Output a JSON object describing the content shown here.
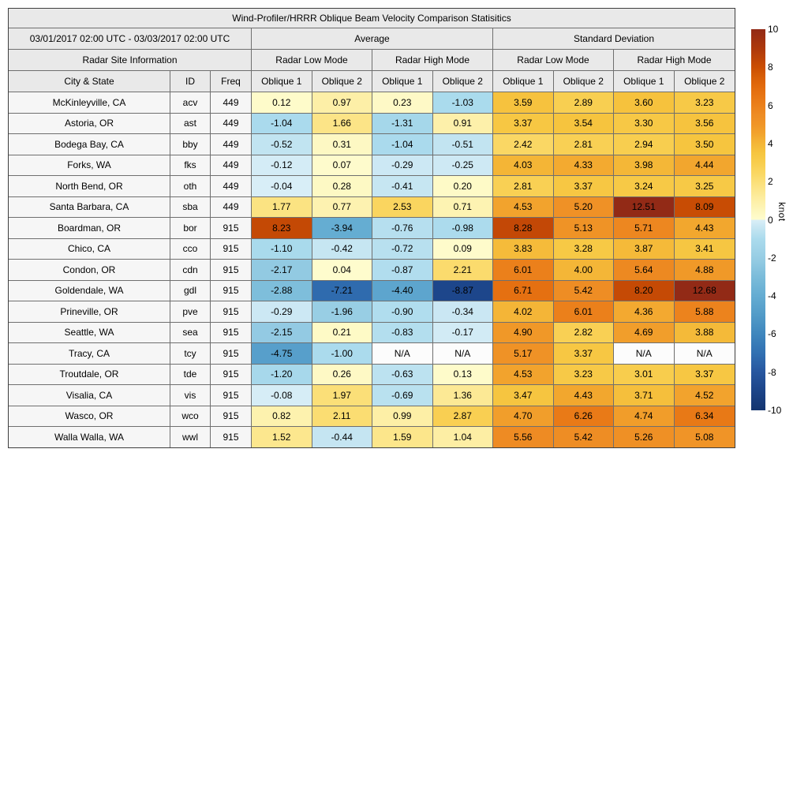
{
  "page": {
    "background": "#ffffff"
  },
  "colors": {
    "header_bg": "#e9e9e9",
    "label_bg": "#f6f6f6",
    "na_bg": "#fcfcfc",
    "grid_line": "#6f6f6f",
    "outer_border": "#3e3e3e",
    "text": "#000000"
  },
  "table": {
    "title": "Wind-Profiler/HRRR Oblique Beam Velocity Comparison Statisitics",
    "date_range": "03/01/2017 02:00 UTC - 03/03/2017 02:00 UTC",
    "group_average": "Average",
    "group_std": "Standard Deviation",
    "mode_headers": [
      "Radar Site Information",
      "Radar Low Mode",
      "Radar High Mode",
      "Radar Low Mode",
      "Radar High Mode"
    ],
    "col_headers": [
      "City & State",
      "ID",
      "Freq",
      "Oblique 1",
      "Oblique 2",
      "Oblique 1",
      "Oblique 2",
      "Oblique 1",
      "Oblique 2",
      "Oblique 1",
      "Oblique 2"
    ],
    "na_text": "N/A"
  },
  "chart_data": {
    "type": "heatmap",
    "title": "Wind-Profiler/HRRR Oblique Beam Velocity Comparison Statisitics",
    "period": "03/01/2017 02:00 UTC - 03/03/2017 02:00 UTC",
    "unit": "knot",
    "value_columns": [
      "avg_low_oblique1",
      "avg_low_oblique2",
      "avg_high_oblique1",
      "avg_high_oblique2",
      "std_low_oblique1",
      "std_low_oblique2",
      "std_high_oblique1",
      "std_high_oblique2"
    ],
    "rows": [
      {
        "city": "McKinleyville, CA",
        "id": "acv",
        "freq": "449",
        "values": [
          0.12,
          0.97,
          0.23,
          -1.03,
          3.59,
          2.89,
          3.6,
          3.23
        ]
      },
      {
        "city": "Astoria, OR",
        "id": "ast",
        "freq": "449",
        "values": [
          -1.04,
          1.66,
          -1.31,
          0.91,
          3.37,
          3.54,
          3.3,
          3.56
        ]
      },
      {
        "city": "Bodega Bay, CA",
        "id": "bby",
        "freq": "449",
        "values": [
          -0.52,
          0.31,
          -1.04,
          -0.51,
          2.42,
          2.81,
          2.94,
          3.5
        ]
      },
      {
        "city": "Forks, WA",
        "id": "fks",
        "freq": "449",
        "values": [
          -0.12,
          0.07,
          -0.29,
          -0.25,
          4.03,
          4.33,
          3.98,
          4.44
        ]
      },
      {
        "city": "North Bend, OR",
        "id": "oth",
        "freq": "449",
        "values": [
          -0.04,
          0.28,
          -0.41,
          0.2,
          2.81,
          3.37,
          3.24,
          3.25
        ]
      },
      {
        "city": "Santa Barbara, CA",
        "id": "sba",
        "freq": "449",
        "values": [
          1.77,
          0.77,
          2.53,
          0.71,
          4.53,
          5.2,
          12.51,
          8.09
        ]
      },
      {
        "city": "Boardman, OR",
        "id": "bor",
        "freq": "915",
        "values": [
          8.23,
          -3.94,
          -0.76,
          -0.98,
          8.28,
          5.13,
          5.71,
          4.43
        ]
      },
      {
        "city": "Chico, CA",
        "id": "cco",
        "freq": "915",
        "values": [
          -1.1,
          -0.42,
          -0.72,
          0.09,
          3.83,
          3.28,
          3.87,
          3.41
        ]
      },
      {
        "city": "Condon, OR",
        "id": "cdn",
        "freq": "915",
        "values": [
          -2.17,
          0.04,
          -0.87,
          2.21,
          6.01,
          4.0,
          5.64,
          4.88
        ]
      },
      {
        "city": "Goldendale, WA",
        "id": "gdl",
        "freq": "915",
        "values": [
          -2.88,
          -7.21,
          -4.4,
          -8.87,
          6.71,
          5.42,
          8.2,
          12.68
        ]
      },
      {
        "city": "Prineville, OR",
        "id": "pve",
        "freq": "915",
        "values": [
          -0.29,
          -1.96,
          -0.9,
          -0.34,
          4.02,
          6.01,
          4.36,
          5.88
        ]
      },
      {
        "city": "Seattle, WA",
        "id": "sea",
        "freq": "915",
        "values": [
          -2.15,
          0.21,
          -0.83,
          -0.17,
          4.9,
          2.82,
          4.69,
          3.88
        ]
      },
      {
        "city": "Tracy, CA",
        "id": "tcy",
        "freq": "915",
        "values": [
          -4.75,
          -1.0,
          null,
          null,
          5.17,
          3.37,
          null,
          null
        ]
      },
      {
        "city": "Troutdale, OR",
        "id": "tde",
        "freq": "915",
        "values": [
          -1.2,
          0.26,
          -0.63,
          0.13,
          4.53,
          3.23,
          3.01,
          3.37
        ]
      },
      {
        "city": "Visalia, CA",
        "id": "vis",
        "freq": "915",
        "values": [
          -0.08,
          1.97,
          -0.69,
          1.36,
          3.47,
          4.43,
          3.71,
          4.52
        ]
      },
      {
        "city": "Wasco, OR",
        "id": "wco",
        "freq": "915",
        "values": [
          0.82,
          2.11,
          0.99,
          2.87,
          4.7,
          6.26,
          4.74,
          6.34
        ]
      },
      {
        "city": "Walla Walla, WA",
        "id": "wwl",
        "freq": "915",
        "values": [
          1.52,
          -0.44,
          1.59,
          1.04,
          5.56,
          5.42,
          5.26,
          5.08
        ]
      }
    ],
    "colorbar": {
      "label": "knot",
      "min": -10,
      "max": 10,
      "ticks": [
        10,
        8,
        6,
        4,
        2,
        0,
        -2,
        -4,
        -6,
        -8,
        -10
      ],
      "gradient_stops": [
        [
          -10,
          "#14356f"
        ],
        [
          -9,
          "#1c4488"
        ],
        [
          -8,
          "#27569f"
        ],
        [
          -7,
          "#3170b2"
        ],
        [
          -6,
          "#3e86bd"
        ],
        [
          -5,
          "#529bc8"
        ],
        [
          -4,
          "#64acd2"
        ],
        [
          -3,
          "#7bbcda"
        ],
        [
          -2,
          "#97cde4"
        ],
        [
          -1,
          "#abdbed"
        ],
        [
          -0.5,
          "#c2e4f1"
        ],
        [
          -0.02,
          "#d9eef7"
        ],
        [
          0.02,
          "#fefcce"
        ],
        [
          0.5,
          "#fdf6bb"
        ],
        [
          1,
          "#fdefa6"
        ],
        [
          1.5,
          "#fce78f"
        ],
        [
          2,
          "#fbdf77"
        ],
        [
          2.5,
          "#fad660"
        ],
        [
          3,
          "#f8cd4d"
        ],
        [
          3.5,
          "#f6c53f"
        ],
        [
          4,
          "#f4b637"
        ],
        [
          4.5,
          "#f2a42d"
        ],
        [
          5,
          "#f09527"
        ],
        [
          5.5,
          "#ee8c24"
        ],
        [
          6,
          "#eb801b"
        ],
        [
          6.5,
          "#e77514"
        ],
        [
          7,
          "#e26a0d"
        ],
        [
          7.5,
          "#d75e07"
        ],
        [
          8,
          "#cb4e03"
        ],
        [
          9,
          "#ad380c"
        ],
        [
          10,
          "#922a16"
        ]
      ]
    }
  }
}
